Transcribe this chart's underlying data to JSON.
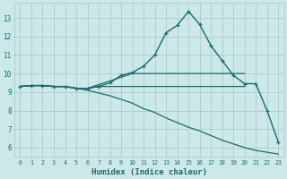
{
  "xlabel": "Humidex (Indice chaleur)",
  "bg_color": "#cce8e8",
  "grid_color": "#aacccc",
  "line_color": "#1a6b6b",
  "xlim": [
    -0.5,
    23.5
  ],
  "ylim": [
    5.5,
    13.8
  ],
  "xticks": [
    0,
    1,
    2,
    3,
    4,
    5,
    6,
    7,
    8,
    9,
    10,
    11,
    12,
    13,
    14,
    15,
    16,
    17,
    18,
    19,
    20,
    21,
    22,
    23
  ],
  "yticks": [
    6,
    7,
    8,
    9,
    10,
    11,
    12,
    13
  ],
  "lines": [
    {
      "x": [
        0,
        1,
        2,
        3,
        4,
        5,
        6,
        7,
        8,
        9,
        10,
        11,
        12,
        13,
        14,
        15,
        16,
        17,
        18,
        19,
        20,
        21,
        22,
        23
      ],
      "y": [
        9.3,
        9.35,
        9.35,
        9.3,
        9.3,
        9.2,
        9.2,
        9.3,
        9.5,
        9.9,
        10.05,
        10.4,
        11.0,
        12.2,
        12.6,
        13.35,
        12.65,
        11.5,
        10.7,
        9.9,
        9.45,
        9.45,
        8.0,
        6.3
      ],
      "marker": true,
      "lw": 1.0
    },
    {
      "x": [
        0,
        1,
        2,
        3,
        4,
        5,
        6,
        7,
        8,
        9,
        10,
        11,
        12,
        13,
        14,
        15,
        16,
        17,
        18,
        19,
        20
      ],
      "y": [
        9.3,
        9.35,
        9.35,
        9.3,
        9.3,
        9.2,
        9.2,
        9.4,
        9.6,
        9.8,
        10.0,
        10.0,
        10.0,
        10.0,
        10.0,
        10.0,
        10.0,
        10.0,
        10.0,
        10.0,
        10.0
      ],
      "marker": false,
      "lw": 0.9
    },
    {
      "x": [
        0,
        1,
        2,
        3,
        4,
        5,
        6,
        7,
        8,
        9,
        10,
        11,
        12,
        13,
        14,
        15,
        16,
        17,
        18,
        19,
        20
      ],
      "y": [
        9.3,
        9.35,
        9.35,
        9.3,
        9.3,
        9.2,
        9.2,
        9.3,
        9.3,
        9.3,
        9.3,
        9.3,
        9.3,
        9.3,
        9.3,
        9.3,
        9.3,
        9.3,
        9.3,
        9.3,
        9.3
      ],
      "marker": false,
      "lw": 0.9
    },
    {
      "x": [
        0,
        1,
        2,
        3,
        4,
        5,
        6,
        7,
        8,
        9,
        10,
        11,
        12,
        13,
        14,
        15,
        16,
        17,
        18,
        19,
        20,
        21,
        22,
        23
      ],
      "y": [
        9.3,
        9.35,
        9.35,
        9.3,
        9.3,
        9.2,
        9.1,
        8.95,
        8.8,
        8.6,
        8.4,
        8.1,
        7.9,
        7.6,
        7.35,
        7.1,
        6.9,
        6.65,
        6.4,
        6.2,
        6.0,
        5.85,
        5.75,
        5.65
      ],
      "marker": false,
      "lw": 0.9
    }
  ]
}
